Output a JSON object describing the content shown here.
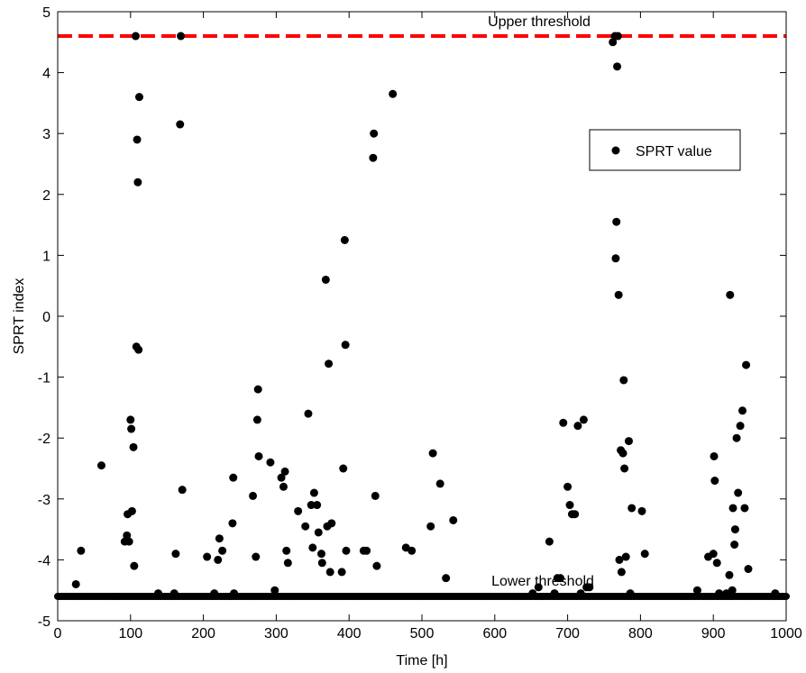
{
  "chart_data": {
    "type": "scatter",
    "xlabel": "Time [h]",
    "ylabel": "SPRT index",
    "xlim": [
      0,
      1000
    ],
    "ylim": [
      -5,
      5
    ],
    "x_ticks": [
      "0",
      "100",
      "200",
      "300",
      "400",
      "500",
      "600",
      "700",
      "800",
      "900",
      "1000"
    ],
    "y_ticks": [
      "-5",
      "-4",
      "-3",
      "-2",
      "-1",
      "0",
      "1",
      "2",
      "3",
      "4",
      "5"
    ],
    "grid": false,
    "legend": {
      "position": "upper-right",
      "entries": [
        "SPRT value"
      ]
    },
    "thresholds": [
      {
        "label": "Upper threshold",
        "value": 4.6,
        "color": "#ff0000",
        "style": "dashed"
      },
      {
        "label": "Lower threshold",
        "value": -4.6,
        "color": "#000000",
        "style": "dense-points"
      }
    ],
    "baseline": {
      "y": -4.6,
      "x_start": 0,
      "x_end": 1000,
      "step": 2
    },
    "series": [
      {
        "name": "SPRT value",
        "color": "#000000",
        "points": [
          [
            25,
            -4.4
          ],
          [
            32,
            -3.85
          ],
          [
            60,
            -2.45
          ],
          [
            92,
            -3.7
          ],
          [
            95,
            -3.6
          ],
          [
            96,
            -3.25
          ],
          [
            98,
            -3.7
          ],
          [
            100,
            -1.7
          ],
          [
            101,
            -1.85
          ],
          [
            102,
            -3.2
          ],
          [
            104,
            -2.15
          ],
          [
            105,
            -4.1
          ],
          [
            107,
            4.6
          ],
          [
            108,
            -0.5
          ],
          [
            109,
            2.9
          ],
          [
            110,
            2.2
          ],
          [
            111,
            -0.55
          ],
          [
            112,
            3.6
          ],
          [
            138,
            -4.55
          ],
          [
            160,
            -4.55
          ],
          [
            162,
            -3.9
          ],
          [
            168,
            3.15
          ],
          [
            169,
            4.6
          ],
          [
            171,
            -2.85
          ],
          [
            205,
            -3.95
          ],
          [
            215,
            -4.55
          ],
          [
            220,
            -4.0
          ],
          [
            222,
            -3.65
          ],
          [
            226,
            -3.85
          ],
          [
            240,
            -3.4
          ],
          [
            241,
            -2.65
          ],
          [
            242,
            -4.55
          ],
          [
            268,
            -2.95
          ],
          [
            272,
            -3.95
          ],
          [
            274,
            -1.7
          ],
          [
            275,
            -1.2
          ],
          [
            276,
            -2.3
          ],
          [
            292,
            -2.4
          ],
          [
            298,
            -4.5
          ],
          [
            307,
            -2.65
          ],
          [
            310,
            -2.8
          ],
          [
            312,
            -2.55
          ],
          [
            314,
            -3.85
          ],
          [
            316,
            -4.05
          ],
          [
            330,
            -3.2
          ],
          [
            340,
            -3.45
          ],
          [
            344,
            -1.6
          ],
          [
            348,
            -3.1
          ],
          [
            350,
            -3.8
          ],
          [
            352,
            -2.9
          ],
          [
            356,
            -3.1
          ],
          [
            358,
            -3.55
          ],
          [
            362,
            -3.9
          ],
          [
            363,
            -4.05
          ],
          [
            368,
            0.6
          ],
          [
            370,
            -3.45
          ],
          [
            372,
            -0.78
          ],
          [
            374,
            -4.2
          ],
          [
            376,
            -3.4
          ],
          [
            390,
            -4.2
          ],
          [
            392,
            -2.5
          ],
          [
            394,
            1.25
          ],
          [
            395,
            -0.47
          ],
          [
            396,
            -3.85
          ],
          [
            420,
            -3.85
          ],
          [
            424,
            -3.85
          ],
          [
            433,
            2.6
          ],
          [
            434,
            3.0
          ],
          [
            436,
            -2.95
          ],
          [
            438,
            -4.1
          ],
          [
            460,
            3.65
          ],
          [
            478,
            -3.8
          ],
          [
            486,
            -3.85
          ],
          [
            512,
            -3.45
          ],
          [
            515,
            -2.25
          ],
          [
            525,
            -2.75
          ],
          [
            533,
            -4.3
          ],
          [
            543,
            -3.35
          ],
          [
            652,
            -4.55
          ],
          [
            660,
            -4.45
          ],
          [
            675,
            -3.7
          ],
          [
            682,
            -4.55
          ],
          [
            686,
            -4.3
          ],
          [
            690,
            -4.3
          ],
          [
            694,
            -1.75
          ],
          [
            700,
            -2.8
          ],
          [
            703,
            -3.1
          ],
          [
            706,
            -3.25
          ],
          [
            710,
            -3.25
          ],
          [
            714,
            -1.8
          ],
          [
            718,
            -4.55
          ],
          [
            722,
            -1.7
          ],
          [
            726,
            -4.45
          ],
          [
            730,
            -4.45
          ],
          [
            762,
            4.5
          ],
          [
            765,
            4.6
          ],
          [
            766,
            0.95
          ],
          [
            767,
            1.55
          ],
          [
            768,
            4.1
          ],
          [
            769,
            4.6
          ],
          [
            770,
            0.35
          ],
          [
            771,
            -4.0
          ],
          [
            773,
            -2.2
          ],
          [
            774,
            -4.2
          ],
          [
            776,
            -2.25
          ],
          [
            777,
            -1.05
          ],
          [
            778,
            -2.5
          ],
          [
            780,
            -3.95
          ],
          [
            784,
            -2.05
          ],
          [
            786,
            -4.55
          ],
          [
            788,
            -3.15
          ],
          [
            802,
            -3.2
          ],
          [
            806,
            -3.9
          ],
          [
            878,
            -4.5
          ],
          [
            893,
            -3.95
          ],
          [
            900,
            -3.9
          ],
          [
            901,
            -2.3
          ],
          [
            902,
            -2.7
          ],
          [
            905,
            -4.05
          ],
          [
            908,
            -4.55
          ],
          [
            918,
            -4.55
          ],
          [
            922,
            -4.25
          ],
          [
            923,
            0.35
          ],
          [
            926,
            -4.5
          ],
          [
            927,
            -3.15
          ],
          [
            929,
            -3.75
          ],
          [
            930,
            -3.5
          ],
          [
            932,
            -2.0
          ],
          [
            934,
            -2.9
          ],
          [
            937,
            -1.8
          ],
          [
            940,
            -1.55
          ],
          [
            943,
            -3.15
          ],
          [
            945,
            -0.8
          ],
          [
            948,
            -4.15
          ],
          [
            985,
            -4.55
          ]
        ]
      }
    ]
  }
}
